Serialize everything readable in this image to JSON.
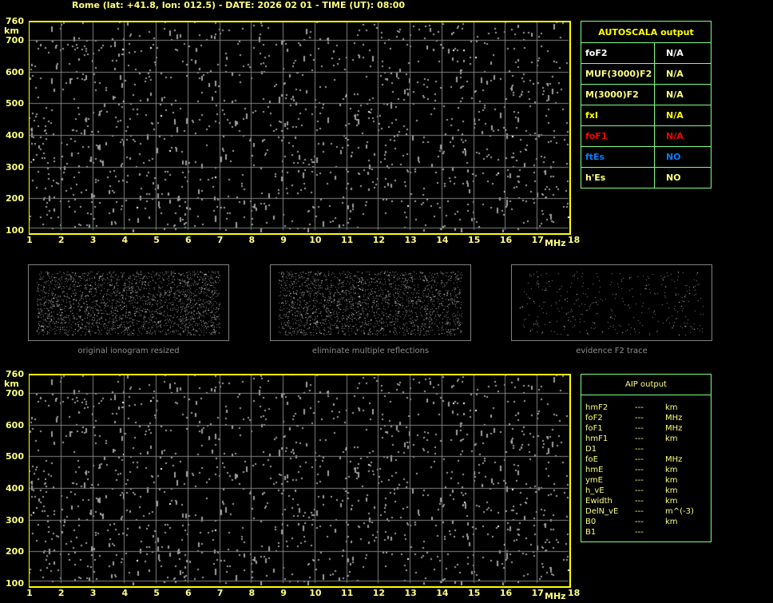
{
  "title": "Rome (lat: +41.8, lon: 012.5) - DATE: 2026 02 01 - TIME (UT): 08:00",
  "ionogram": {
    "y_unit": "km",
    "x_unit": "MHz",
    "y_ticks": [
      "760",
      "700",
      "600",
      "500",
      "400",
      "300",
      "200",
      "100"
    ],
    "y_values": [
      760,
      700,
      600,
      500,
      400,
      300,
      200,
      100
    ],
    "x_ticks": [
      "1",
      "2",
      "3",
      "4",
      "5",
      "6",
      "7",
      "8",
      "9",
      "10",
      "11",
      "12",
      "13",
      "14",
      "15",
      "16",
      "17",
      "18"
    ],
    "x_range": [
      1,
      18
    ],
    "y_range": [
      100,
      760
    ],
    "grid": true,
    "colors": {
      "frame": "#ffff00",
      "grid": "#808080",
      "echo": "#a0a0a0"
    }
  },
  "autoscala": {
    "header": "AUTOSCALA output",
    "rows": [
      {
        "label": "foF2",
        "value": "N/A",
        "color": "#ffffff"
      },
      {
        "label": "MUF(3000)F2",
        "value": "N/A",
        "color": "#ffff80"
      },
      {
        "label": "M(3000)F2",
        "value": "N/A",
        "color": "#ffff80"
      },
      {
        "label": "fxI",
        "value": "N/A",
        "color": "#ffff00"
      },
      {
        "label": "foF1",
        "value": "N/A",
        "color": "#ff0000"
      },
      {
        "label": "ftEs",
        "value": "NO",
        "color": "#0080ff"
      },
      {
        "label": "h'Es",
        "value": "NO",
        "color": "#ffff80"
      }
    ]
  },
  "thumbnails": [
    {
      "caption": "original ionogram resized"
    },
    {
      "caption": "eliminate multiple reflections"
    },
    {
      "caption": "evidence F2 trace"
    }
  ],
  "aip": {
    "header": "AIP output",
    "rows": [
      {
        "label": "hmF2",
        "value": "---",
        "unit": "km"
      },
      {
        "label": "foF2",
        "value": "---",
        "unit": "MHz"
      },
      {
        "label": "foF1",
        "value": "---",
        "unit": "MHz"
      },
      {
        "label": "hmF1",
        "value": "---",
        "unit": "km"
      },
      {
        "label": "D1",
        "value": "---",
        "unit": ""
      },
      {
        "label": "foE",
        "value": "---",
        "unit": "MHz"
      },
      {
        "label": "hmE",
        "value": "---",
        "unit": "km"
      },
      {
        "label": "ymE",
        "value": "---",
        "unit": "km"
      },
      {
        "label": "h_vE",
        "value": "---",
        "unit": "km"
      },
      {
        "label": "Ewidth",
        "value": "---",
        "unit": "km"
      },
      {
        "label": "DelN_vE",
        "value": "---",
        "unit": "m^(-3)"
      },
      {
        "label": "B0",
        "value": "---",
        "unit": "km"
      },
      {
        "label": "B1",
        "value": "---",
        "unit": ""
      }
    ]
  }
}
